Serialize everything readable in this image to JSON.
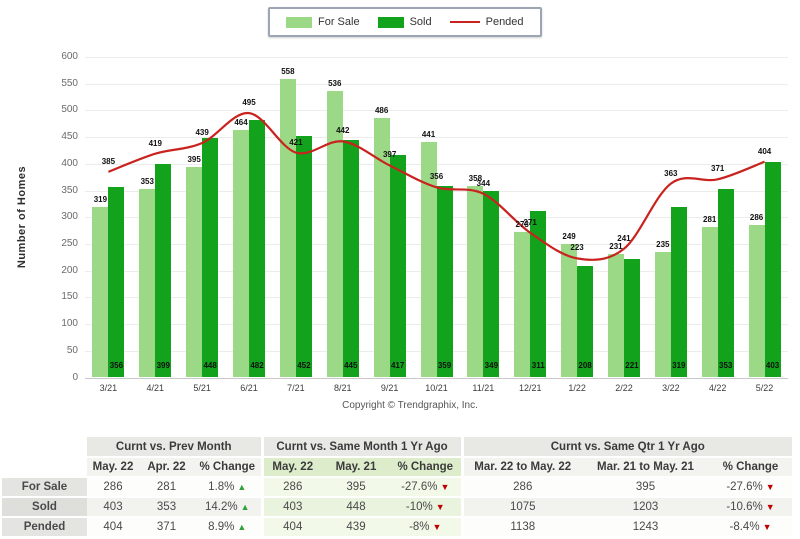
{
  "colors": {
    "for_sale": "#9cd986",
    "sold": "#12a21b",
    "pended": "#c9231f",
    "up_arrow": "#2fa13c",
    "down_arrow": "#c00000"
  },
  "legend": {
    "for_sale": "For Sale",
    "sold": "Sold",
    "pended": "Pended"
  },
  "chart_data": {
    "type": "bar",
    "title": "",
    "ylabel": "Number of Homes",
    "xlabel": "",
    "ylim": [
      0,
      600
    ],
    "ytick_step": 50,
    "grid": true,
    "legend_position": "top-center",
    "categories": [
      "3/21",
      "4/21",
      "5/21",
      "6/21",
      "7/21",
      "8/21",
      "9/21",
      "10/21",
      "11/21",
      "12/21",
      "1/22",
      "2/22",
      "3/22",
      "4/22",
      "5/22"
    ],
    "series": [
      {
        "name": "For Sale",
        "type": "bar",
        "color_key": "for_sale",
        "values": [
          319,
          353,
          395,
          464,
          558,
          536,
          486,
          441,
          358,
          273,
          249,
          231,
          235,
          281,
          286
        ]
      },
      {
        "name": "Sold",
        "type": "bar",
        "color_key": "sold",
        "values": [
          356,
          399,
          448,
          482,
          452,
          445,
          417,
          359,
          349,
          311,
          208,
          221,
          319,
          353,
          403
        ]
      },
      {
        "name": "Pended",
        "type": "line",
        "color_key": "pended",
        "values": [
          385,
          419,
          439,
          495,
          421,
          442,
          397,
          356,
          344,
          271,
          223,
          241,
          363,
          371,
          404
        ]
      }
    ]
  },
  "copyright": "Copyright © Trendgraphix, Inc.",
  "table": {
    "groups": [
      {
        "title": "Curnt vs. Prev Month",
        "cols": [
          "May. 22",
          "Apr. 22",
          "% Change"
        ],
        "tint": false
      },
      {
        "title": "Curnt vs. Same Month 1 Yr Ago",
        "cols": [
          "May. 22",
          "May. 21",
          "% Change"
        ],
        "tint": true
      },
      {
        "title": "Curnt vs. Same Qtr 1 Yr Ago",
        "cols": [
          "Mar. 22 to May. 22",
          "Mar. 21 to May. 21",
          "% Change"
        ],
        "tint": false
      }
    ],
    "rows": [
      {
        "label": "For Sale",
        "cells": [
          {
            "a": "286",
            "b": "281",
            "change": "1.8%",
            "dir": "up"
          },
          {
            "a": "286",
            "b": "395",
            "change": "-27.6%",
            "dir": "down"
          },
          {
            "a": "286",
            "b": "395",
            "change": "-27.6%",
            "dir": "down"
          }
        ]
      },
      {
        "label": "Sold",
        "cells": [
          {
            "a": "403",
            "b": "353",
            "change": "14.2%",
            "dir": "up"
          },
          {
            "a": "403",
            "b": "448",
            "change": "-10%",
            "dir": "down"
          },
          {
            "a": "1075",
            "b": "1203",
            "change": "-10.6%",
            "dir": "down"
          }
        ]
      },
      {
        "label": "Pended",
        "cells": [
          {
            "a": "404",
            "b": "371",
            "change": "8.9%",
            "dir": "up"
          },
          {
            "a": "404",
            "b": "439",
            "change": "-8%",
            "dir": "down"
          },
          {
            "a": "1138",
            "b": "1243",
            "change": "-8.4%",
            "dir": "down"
          }
        ]
      }
    ]
  }
}
